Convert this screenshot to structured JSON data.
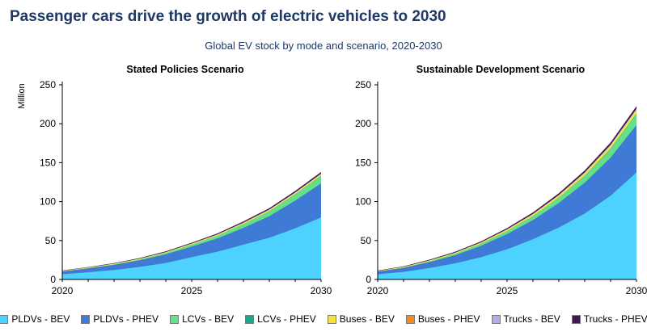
{
  "header": {
    "title": "Passenger cars drive the growth of electric vehicles to 2030",
    "subtitle": "Global EV stock by mode and scenario, 2020-2030"
  },
  "chart_data": [
    {
      "type": "area",
      "stacked": true,
      "title": "Stated Policies Scenario",
      "xlabel": "",
      "ylabel": "Million",
      "x": [
        2020,
        2021,
        2022,
        2023,
        2024,
        2025,
        2026,
        2027,
        2028,
        2029,
        2030
      ],
      "x_ticks": [
        "2020",
        "2025",
        "2030"
      ],
      "y_ticks": [
        "0",
        "50",
        "100",
        "150",
        "200",
        "250"
      ],
      "ylim": [
        0,
        250
      ],
      "grid": false,
      "series": [
        {
          "name": "PLDVs - BEV",
          "color": "#4dd2ff",
          "values": [
            7,
            9.5,
            12.5,
            16.5,
            21.5,
            29,
            36,
            45,
            54,
            66,
            80
          ]
        },
        {
          "name": "PLDVs - PHEV",
          "color": "#3f7ad6",
          "values": [
            3,
            4.5,
            6,
            8,
            10.5,
            13,
            16.5,
            21,
            27,
            35,
            43
          ]
        },
        {
          "name": "LCVs - BEV",
          "color": "#62e08a",
          "values": [
            0.4,
            0.6,
            0.9,
            1.3,
            1.9,
            2.6,
            3.6,
            4.8,
            6.2,
            7.8,
            9.5
          ]
        },
        {
          "name": "LCVs - PHEV",
          "color": "#1fa58c",
          "values": [
            0.05,
            0.1,
            0.1,
            0.15,
            0.2,
            0.25,
            0.3,
            0.4,
            0.5,
            0.6,
            0.7
          ]
        },
        {
          "name": "Buses - BEV",
          "color": "#f5e33d",
          "values": [
            0.5,
            0.6,
            0.7,
            0.8,
            0.9,
            1.0,
            1.2,
            1.4,
            1.6,
            1.8,
            2.0
          ]
        },
        {
          "name": "Buses - PHEV",
          "color": "#f08c1e",
          "values": [
            0.05,
            0.05,
            0.05,
            0.05,
            0.1,
            0.1,
            0.1,
            0.1,
            0.1,
            0.1,
            0.1
          ]
        },
        {
          "name": "Trucks - BEV",
          "color": "#b8a9e8",
          "values": [
            0.02,
            0.03,
            0.05,
            0.08,
            0.1,
            0.15,
            0.2,
            0.3,
            0.4,
            0.5,
            0.6
          ]
        },
        {
          "name": "Trucks - PHEV",
          "color": "#3b1a4e",
          "values": [
            0.5,
            0.6,
            0.7,
            0.8,
            1.0,
            1.1,
            1.3,
            1.5,
            1.7,
            1.9,
            2.1
          ]
        }
      ]
    },
    {
      "type": "area",
      "stacked": true,
      "title": "Sustainable Development Scenario",
      "xlabel": "",
      "ylabel": "",
      "x": [
        2020,
        2021,
        2022,
        2023,
        2024,
        2025,
        2026,
        2027,
        2028,
        2029,
        2030
      ],
      "x_ticks": [
        "2020",
        "2025",
        "2030"
      ],
      "y_ticks": [
        "0",
        "50",
        "100",
        "150",
        "200",
        "250"
      ],
      "ylim": [
        0,
        250
      ],
      "grid": false,
      "series": [
        {
          "name": "PLDVs - BEV",
          "color": "#4dd2ff",
          "values": [
            7,
            10,
            15,
            21,
            29,
            39,
            52,
            67,
            85,
            108,
            138
          ]
        },
        {
          "name": "PLDVs - PHEV",
          "color": "#3f7ad6",
          "values": [
            3,
            4.5,
            7,
            10,
            14,
            19,
            24,
            31,
            39,
            48,
            60
          ]
        },
        {
          "name": "LCVs - BEV",
          "color": "#62e08a",
          "values": [
            0.4,
            0.8,
            1.3,
            2.0,
            2.8,
            3.8,
            5.0,
            6.5,
            8.5,
            11,
            14
          ]
        },
        {
          "name": "LCVs - PHEV",
          "color": "#1fa58c",
          "values": [
            0.05,
            0.1,
            0.15,
            0.2,
            0.3,
            0.4,
            0.5,
            0.6,
            0.8,
            1.0,
            1.2
          ]
        },
        {
          "name": "Buses - BEV",
          "color": "#f5e33d",
          "values": [
            0.5,
            0.7,
            0.9,
            1.1,
            1.4,
            1.8,
            2.2,
            2.7,
            3.2,
            3.8,
            4.5
          ]
        },
        {
          "name": "Buses - PHEV",
          "color": "#f08c1e",
          "values": [
            0.05,
            0.05,
            0.1,
            0.1,
            0.1,
            0.15,
            0.15,
            0.2,
            0.2,
            0.25,
            0.3
          ]
        },
        {
          "name": "Trucks - BEV",
          "color": "#b8a9e8",
          "values": [
            0.02,
            0.04,
            0.07,
            0.1,
            0.15,
            0.25,
            0.35,
            0.5,
            0.7,
            0.9,
            1.2
          ]
        },
        {
          "name": "Trucks - PHEV",
          "color": "#3b1a4e",
          "values": [
            0.5,
            0.7,
            0.9,
            1.1,
            1.3,
            1.6,
            1.9,
            2.2,
            2.6,
            3.0,
            3.4
          ]
        }
      ]
    }
  ]
}
